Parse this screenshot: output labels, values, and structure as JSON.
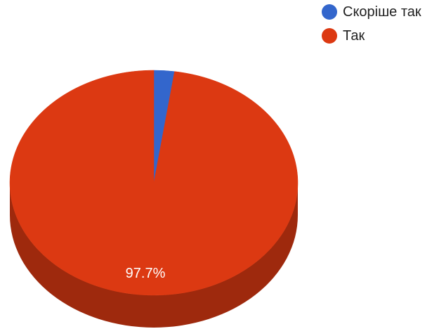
{
  "chart_data": {
    "type": "pie",
    "style": "3d",
    "title": "",
    "legend_position": "top-right",
    "slices": [
      {
        "label": "Скоріше так",
        "value": 2.3,
        "color": "#3366cc"
      },
      {
        "label": "Так",
        "value": 97.7,
        "color": "#dc3912",
        "data_label": "97.7%"
      }
    ]
  }
}
